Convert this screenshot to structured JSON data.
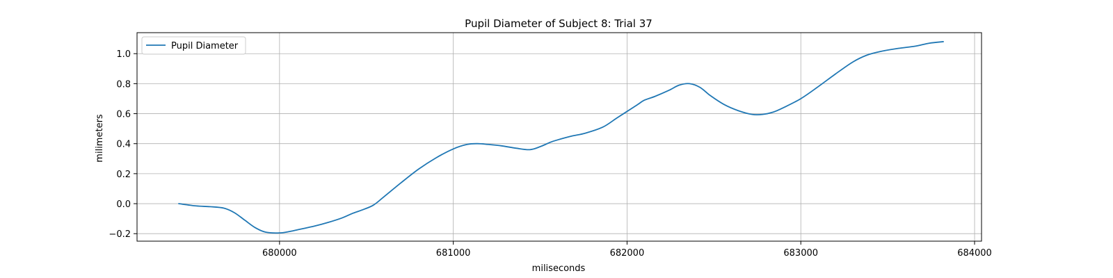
{
  "chart_data": {
    "type": "line",
    "title": "Pupil Diameter of Subject 8: Trial 37",
    "xlabel": "miliseconds",
    "ylabel": "milimeters",
    "xlim": [
      679180,
      684040
    ],
    "ylim": [
      -0.25,
      1.14
    ],
    "xticks": [
      680000,
      681000,
      682000,
      683000,
      684000
    ],
    "yticks": [
      -0.2,
      0.0,
      0.2,
      0.4,
      0.6,
      0.8,
      1.0
    ],
    "xtick_labels": [
      "680000",
      "681000",
      "682000",
      "683000",
      "684000"
    ],
    "ytick_labels": [
      "−0.2",
      "0.0",
      "0.2",
      "0.4",
      "0.6",
      "0.8",
      "1.0"
    ],
    "grid": true,
    "legend_position": "upper-left",
    "series": [
      {
        "name": "Pupil Diameter",
        "color": "#1f77b4",
        "x": [
          679420,
          679520,
          679600,
          679680,
          679740,
          679800,
          679860,
          679920,
          680000,
          680060,
          680120,
          680200,
          680280,
          680360,
          680420,
          680480,
          680540,
          680600,
          680700,
          680800,
          680900,
          681000,
          681080,
          681140,
          681200,
          681280,
          681360,
          681440,
          681500,
          681560,
          681600,
          681680,
          681760,
          681860,
          681940,
          682000,
          682060,
          682100,
          682160,
          682240,
          682300,
          682360,
          682420,
          682480,
          682560,
          682640,
          682720,
          682780,
          682840,
          682900,
          683000,
          683100,
          683200,
          683300,
          683380,
          683460,
          683560,
          683660,
          683740,
          683820
        ],
        "y": [
          0.0,
          -0.015,
          -0.02,
          -0.03,
          -0.06,
          -0.11,
          -0.16,
          -0.19,
          -0.195,
          -0.185,
          -0.17,
          -0.15,
          -0.125,
          -0.095,
          -0.065,
          -0.04,
          -0.01,
          0.045,
          0.14,
          0.23,
          0.305,
          0.365,
          0.395,
          0.4,
          0.395,
          0.385,
          0.37,
          0.36,
          0.38,
          0.41,
          0.425,
          0.45,
          0.47,
          0.51,
          0.57,
          0.615,
          0.66,
          0.69,
          0.715,
          0.755,
          0.79,
          0.8,
          0.775,
          0.72,
          0.66,
          0.62,
          0.595,
          0.595,
          0.61,
          0.64,
          0.7,
          0.78,
          0.865,
          0.945,
          0.99,
          1.015,
          1.035,
          1.05,
          1.07,
          1.08
        ]
      }
    ]
  }
}
